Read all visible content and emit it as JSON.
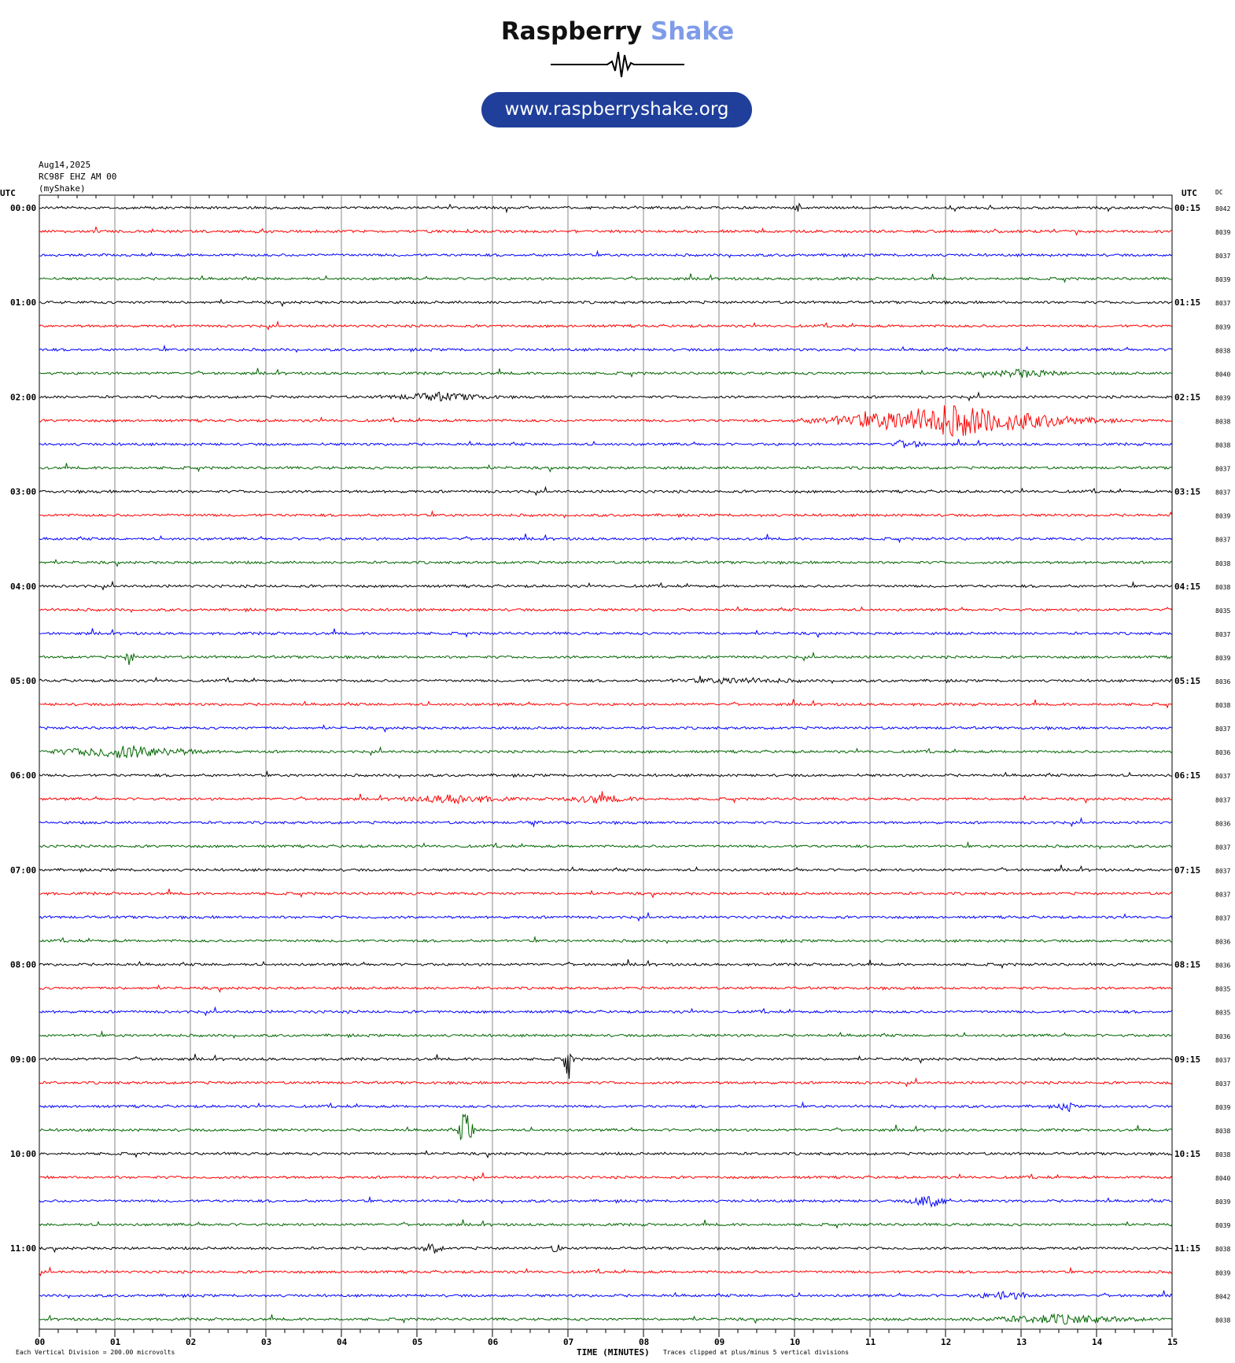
{
  "header": {
    "brand_main": "Raspberry",
    "brand_accent": "Shake",
    "url": "www.raspberryshake.org",
    "accent_color": "#7f9ce8",
    "pill_color": "#1f3f9b"
  },
  "meta": {
    "date": "Aug14,2025",
    "station": "RC98F EHZ AM 00",
    "source": "(myShake)"
  },
  "chart_data": {
    "type": "line",
    "title": "",
    "left_axis_label": "UTC",
    "right_axis_label": "UTC",
    "dc_label": "DC",
    "xlabel": "TIME (MINUTES)",
    "xlim": [
      0,
      15
    ],
    "x_ticks": [
      "00",
      "01",
      "02",
      "03",
      "04",
      "05",
      "06",
      "07",
      "08",
      "09",
      "10",
      "11",
      "12",
      "13",
      "14",
      "15"
    ],
    "left_times": [
      "00:00",
      "01:00",
      "02:00",
      "03:00",
      "04:00",
      "05:00",
      "06:00",
      "07:00",
      "08:00",
      "09:00",
      "10:00",
      "11:00"
    ],
    "right_times": [
      "00:15",
      "01:15",
      "02:15",
      "03:15",
      "04:15",
      "05:15",
      "06:15",
      "07:15",
      "08:15",
      "09:15",
      "10:15",
      "11:15"
    ],
    "trace_colors": [
      "#000000",
      "#ff0000",
      "#0000ff",
      "#006600"
    ],
    "dc_values": [
      "8042",
      "8039",
      "8037",
      "8039",
      "8037",
      "8039",
      "8038",
      "8040",
      "8039",
      "8038",
      "8038",
      "8037",
      "8037",
      "8039",
      "8037",
      "8038",
      "8038",
      "8035",
      "8037",
      "8039",
      "8036",
      "8038",
      "8037",
      "8036",
      "8037",
      "8037",
      "8036",
      "8037",
      "8037",
      "8037",
      "8037",
      "8036",
      "8036",
      "8035",
      "8035",
      "8036",
      "8037",
      "8037",
      "8039",
      "8038",
      "8038",
      "8040",
      "8039",
      "8039",
      "8038",
      "8039",
      "8042",
      "8038"
    ],
    "footer_left": "Each Vertical Division =  200.00 microvolts",
    "footer_right": "Traces clipped at plus/minus 5 vertical divisions",
    "events": [
      {
        "trace": 0,
        "minute": 10.05,
        "amp": 0.35,
        "dur": 0.1
      },
      {
        "trace": 7,
        "minute": 13.05,
        "amp": 0.3,
        "dur": 0.8
      },
      {
        "trace": 8,
        "minute": 5.3,
        "amp": 0.3,
        "dur": 1.0
      },
      {
        "trace": 9,
        "minute": 12.1,
        "amp": 1.3,
        "dur": 2.4
      },
      {
        "trace": 10,
        "minute": 11.5,
        "amp": 0.35,
        "dur": 0.3
      },
      {
        "trace": 19,
        "minute": 1.2,
        "amp": 0.7,
        "dur": 0.1
      },
      {
        "trace": 20,
        "minute": 9.2,
        "amp": 0.2,
        "dur": 1.2
      },
      {
        "trace": 23,
        "minute": 1.15,
        "amp": 0.5,
        "dur": 1.4
      },
      {
        "trace": 25,
        "minute": 5.5,
        "amp": 0.35,
        "dur": 1.0
      },
      {
        "trace": 25,
        "minute": 7.4,
        "amp": 0.3,
        "dur": 0.7
      },
      {
        "trace": 26,
        "minute": 6.55,
        "amp": 0.25,
        "dur": 0.1
      },
      {
        "trace": 36,
        "minute": 7.0,
        "amp": 1.8,
        "dur": 0.1
      },
      {
        "trace": 38,
        "minute": 13.6,
        "amp": 0.5,
        "dur": 0.15
      },
      {
        "trace": 39,
        "minute": 5.65,
        "amp": 2.0,
        "dur": 0.15
      },
      {
        "trace": 42,
        "minute": 11.8,
        "amp": 0.55,
        "dur": 0.4
      },
      {
        "trace": 44,
        "minute": 5.2,
        "amp": 0.45,
        "dur": 0.2
      },
      {
        "trace": 44,
        "minute": 6.85,
        "amp": 0.45,
        "dur": 0.1
      },
      {
        "trace": 46,
        "minute": 12.8,
        "amp": 0.3,
        "dur": 0.6
      },
      {
        "trace": 47,
        "minute": 13.5,
        "amp": 0.35,
        "dur": 1.5
      }
    ]
  }
}
